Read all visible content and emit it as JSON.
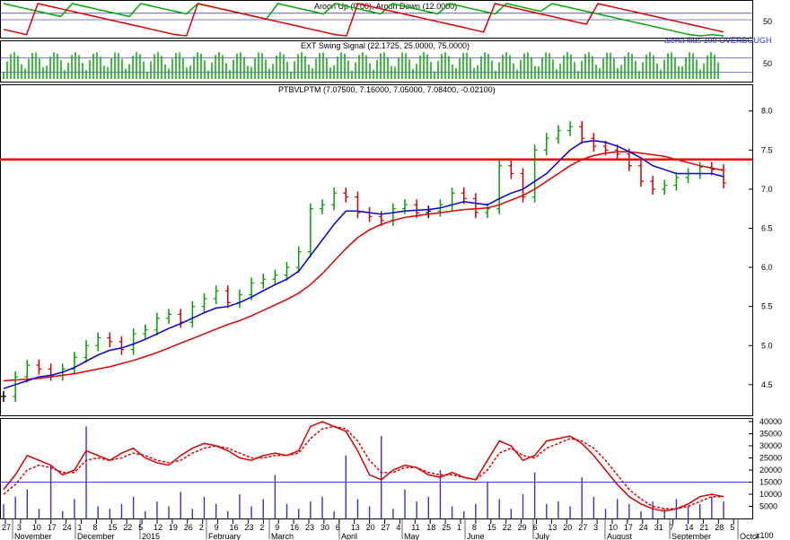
{
  "colors": {
    "price_up": "#00a000",
    "price_down": "#d00000",
    "price_neutral": "#000000",
    "ma_short": "#0000dd",
    "ma_long": "#dd0000",
    "hline": "#ff0000",
    "aroon_up": "#00aa00",
    "aroon_down": "#dd0000",
    "volume": "#3333cc"
  },
  "panels": {
    "aroon": {
      "title": "Aroon Up (0.00), Aroon Down (12.0000)",
      "tick": "50"
    },
    "swing": {
      "title": "EXT Swing Signal (22.1725, 25.0000, 75.0000)",
      "note": "alerta filus 100 OVERBOUGH",
      "tick": "50"
    },
    "price": {
      "title": "PTBVLPTM (7.07500, 7.16000, 7.05000, 7.08400, -0.02100)",
      "yticks": [
        "8.0",
        "7.5",
        "7.0",
        "6.5",
        "6.0",
        "5.5",
        "5.0",
        "4.5"
      ]
    },
    "volume": {
      "yticks": [
        "40000",
        "35000",
        "30000",
        "25000",
        "20000",
        "15000",
        "10000",
        "5000",
        "x100"
      ]
    }
  },
  "xaxis": {
    "days": [
      "27",
      "3",
      "10",
      "17",
      "24",
      "1",
      "8",
      "15",
      "22",
      "5",
      "12",
      "19",
      "26",
      "2",
      "9",
      "16",
      "23",
      "2",
      "9",
      "16",
      "23",
      "30",
      "6",
      "13",
      "20",
      "27",
      "4",
      "11",
      "18",
      "25",
      "1",
      "8",
      "15",
      "22",
      "29",
      "6",
      "13",
      "20",
      "27",
      "3",
      "10",
      "17",
      "24",
      "31",
      "7",
      "14",
      "21",
      "28",
      "5"
    ],
    "months": [
      "November",
      "December",
      "2015",
      "February",
      "March",
      "April",
      "May",
      "June",
      "July",
      "August",
      "September",
      "Octol"
    ]
  },
  "chart_data": [
    {
      "type": "line",
      "title": "Aroon Up (0.00), Aroon Down (12.0000)",
      "series": [
        {
          "name": "Aroon Up",
          "values": [
            100,
            92,
            84,
            76,
            68,
            60,
            100,
            92,
            84,
            76,
            68,
            60,
            100,
            92,
            84,
            76,
            68,
            100,
            92,
            84,
            76,
            68,
            60,
            52,
            100,
            92,
            84,
            76,
            68,
            100,
            92,
            84,
            76,
            68,
            100,
            92,
            84,
            76,
            68,
            100,
            92,
            84,
            76,
            68,
            100,
            92,
            84,
            76,
            100,
            92,
            84,
            76,
            68,
            60,
            52,
            44,
            36,
            28,
            20,
            12,
            4,
            0,
            4,
            0
          ]
        },
        {
          "name": "Aroon Down",
          "values": [
            20,
            12,
            4,
            100,
            92,
            84,
            76,
            68,
            60,
            52,
            44,
            36,
            28,
            20,
            12,
            4,
            0,
            100,
            92,
            84,
            76,
            68,
            60,
            52,
            44,
            36,
            28,
            20,
            12,
            4,
            0,
            100,
            92,
            84,
            76,
            68,
            60,
            52,
            44,
            36,
            28,
            20,
            12,
            100,
            92,
            84,
            76,
            68,
            60,
            52,
            44,
            36,
            100,
            92,
            84,
            76,
            68,
            60,
            52,
            44,
            36,
            28,
            20,
            12
          ]
        }
      ]
    },
    {
      "type": "bar",
      "title": "EXT Swing Signal (22.1725, 25.0000, 75.0000)",
      "levels": [
        25,
        75
      ]
    },
    {
      "type": "line",
      "title": "PTBVLPTM (7.07500, 7.16000, 7.05000, 7.08400, -0.02100)",
      "ylim": [
        4.2,
        8.1
      ],
      "hline": 7.38,
      "series": [
        {
          "name": "Close",
          "values": [
            4.35,
            4.6,
            4.75,
            4.7,
            4.62,
            4.7,
            4.85,
            5.0,
            5.1,
            5.05,
            4.95,
            5.15,
            5.2,
            5.35,
            5.4,
            5.3,
            5.5,
            5.6,
            5.7,
            5.55,
            5.65,
            5.8,
            5.85,
            5.9,
            6.0,
            6.2,
            6.75,
            6.8,
            6.95,
            6.9,
            6.7,
            6.65,
            6.6,
            6.75,
            6.8,
            6.7,
            6.72,
            6.8,
            6.95,
            6.88,
            6.7,
            6.75,
            7.3,
            7.2,
            6.9,
            7.5,
            7.65,
            7.75,
            7.8,
            7.65,
            7.55,
            7.5,
            7.45,
            7.3,
            7.1,
            7.0,
            7.05,
            7.15,
            7.2,
            7.28,
            7.25,
            7.08
          ]
        },
        {
          "name": "MA short",
          "values": [
            4.45,
            4.5,
            4.55,
            4.6,
            4.62,
            4.66,
            4.72,
            4.8,
            4.88,
            4.94,
            4.97,
            5.02,
            5.08,
            5.15,
            5.22,
            5.28,
            5.35,
            5.42,
            5.48,
            5.5,
            5.55,
            5.62,
            5.7,
            5.78,
            5.85,
            5.95,
            6.15,
            6.35,
            6.55,
            6.72,
            6.72,
            6.7,
            6.68,
            6.7,
            6.72,
            6.73,
            6.74,
            6.76,
            6.8,
            6.84,
            6.82,
            6.8,
            6.88,
            6.95,
            7.0,
            7.1,
            7.2,
            7.35,
            7.5,
            7.6,
            7.62,
            7.6,
            7.55,
            7.48,
            7.4,
            7.3,
            7.25,
            7.2,
            7.2,
            7.2,
            7.2,
            7.16
          ]
        },
        {
          "name": "MA long",
          "values": [
            4.55,
            4.56,
            4.57,
            4.58,
            4.6,
            4.62,
            4.64,
            4.67,
            4.7,
            4.73,
            4.77,
            4.81,
            4.86,
            4.91,
            4.97,
            5.03,
            5.09,
            5.15,
            5.21,
            5.27,
            5.32,
            5.38,
            5.45,
            5.52,
            5.59,
            5.67,
            5.78,
            5.92,
            6.08,
            6.24,
            6.38,
            6.48,
            6.55,
            6.6,
            6.64,
            6.66,
            6.68,
            6.7,
            6.72,
            6.74,
            6.75,
            6.76,
            6.8,
            6.86,
            6.92,
            7.0,
            7.1,
            7.2,
            7.3,
            7.38,
            7.43,
            7.46,
            7.48,
            7.48,
            7.46,
            7.44,
            7.42,
            7.38,
            7.34,
            7.3,
            7.27,
            7.24
          ]
        }
      ]
    },
    {
      "type": "bar",
      "title": "",
      "ylim": [
        0,
        40000
      ],
      "hline": 15000,
      "series": [
        {
          "name": "Volume",
          "values": [
            6000,
            9000,
            12000,
            4000,
            22000,
            3000,
            8000,
            38000,
            5000,
            4000,
            6000,
            9000,
            3000,
            7000,
            5000,
            11000,
            4000,
            9000,
            6000,
            3000,
            10000,
            5000,
            8000,
            18000,
            6000,
            4000,
            7000,
            9000,
            3000,
            26000,
            8000,
            5000,
            34000,
            4000,
            12000,
            7000,
            9000,
            20000,
            5000,
            3000,
            6000,
            15000,
            8000,
            4000,
            10000,
            19000,
            6000,
            7000,
            5000,
            17000,
            9000,
            4000,
            8000,
            6000,
            3000,
            7000,
            4000,
            8000,
            5000,
            6000,
            9000,
            7000
          ]
        },
        {
          "name": "Osc 1",
          "values": [
            12000,
            18000,
            26000,
            24000,
            22000,
            18000,
            20000,
            28000,
            26000,
            24000,
            27000,
            29000,
            25000,
            23000,
            22000,
            26000,
            29000,
            31000,
            30000,
            28000,
            25000,
            24000,
            26000,
            27000,
            26000,
            28000,
            38000,
            40000,
            38000,
            36000,
            28000,
            18000,
            16000,
            20000,
            22000,
            21000,
            18000,
            17000,
            19000,
            17000,
            16000,
            24000,
            32000,
            30000,
            24000,
            26000,
            32000,
            33000,
            34000,
            31000,
            26000,
            20000,
            14000,
            9000,
            6000,
            4000,
            3000,
            4000,
            6000,
            9000,
            10000,
            9000
          ]
        },
        {
          "name": "Osc 2",
          "values": [
            10000,
            14000,
            20000,
            22000,
            21000,
            19000,
            19000,
            24000,
            25000,
            24000,
            25000,
            27000,
            26000,
            24000,
            23000,
            24000,
            27000,
            29000,
            30000,
            29000,
            27000,
            25000,
            25000,
            26000,
            26000,
            27000,
            33000,
            37000,
            38000,
            37000,
            32000,
            24000,
            19000,
            19000,
            21000,
            21000,
            19000,
            18000,
            18000,
            17000,
            16000,
            20000,
            27000,
            29000,
            26000,
            25000,
            29000,
            31000,
            33000,
            32000,
            29000,
            24000,
            18000,
            12000,
            8000,
            5000,
            4000,
            4000,
            5000,
            7000,
            9000,
            9000
          ]
        }
      ]
    }
  ]
}
